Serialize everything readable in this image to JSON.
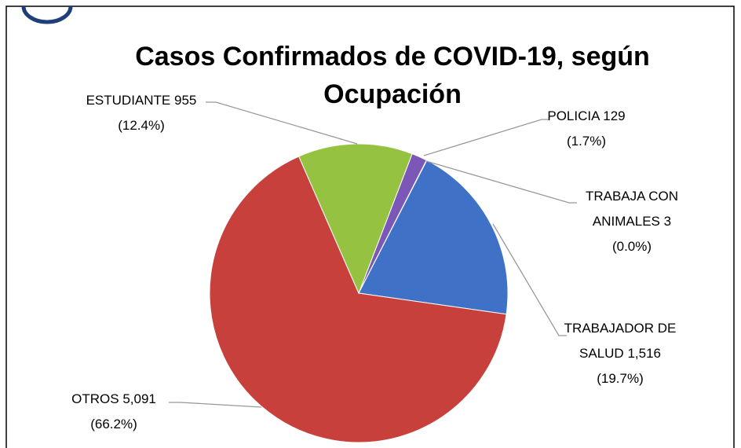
{
  "chart_data": {
    "type": "pie",
    "title": "Casos Confirmados de COVID-19, según Ocupación",
    "categories": [
      "POLICIA",
      "TRABAJA CON ANIMALES",
      "TRABAJADOR DE SALUD",
      "OTROS",
      "ESTUDIANTE"
    ],
    "values": [
      129,
      3,
      1516,
      5091,
      955
    ],
    "value_labels": [
      "129",
      "3",
      "1,516",
      "5,091",
      "955"
    ],
    "percent_labels": [
      "(1.7%)",
      "(0.0%)",
      "(19.7%)",
      "(66.2%)",
      "(12.4%)"
    ],
    "colors": [
      "#7b58b8",
      "#3aa3b8",
      "#3f72c6",
      "#c8403b",
      "#95c240"
    ]
  }
}
